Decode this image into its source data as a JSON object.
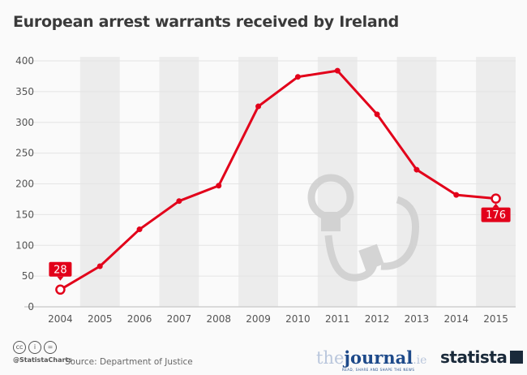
{
  "title": "European arrest warrants received by Ireland",
  "chart_data": {
    "type": "line",
    "title": "European arrest warrants received by Ireland",
    "xlabel": "",
    "ylabel": "",
    "categories": [
      "2004",
      "2005",
      "2006",
      "2007",
      "2008",
      "2009",
      "2010",
      "2011",
      "2012",
      "2013",
      "2014",
      "2015"
    ],
    "values": [
      28,
      66,
      126,
      172,
      197,
      326,
      374,
      384,
      313,
      223,
      182,
      176
    ],
    "ylim": [
      0,
      400
    ],
    "yticks": [
      0,
      50,
      100,
      150,
      200,
      250,
      300,
      350,
      400
    ],
    "grid": true,
    "data_labels": [
      {
        "category": "2004",
        "label": "28"
      },
      {
        "category": "2015",
        "label": "176"
      }
    ],
    "line_color": "#e2001a",
    "band_color": "#ececec"
  },
  "footer": {
    "handle": "@StatistaCharts",
    "source": "Source: Department of Justice",
    "partner_logo_text": "thejournal.ie",
    "partner_tagline": "READ, SHARE AND SHAPE THE NEWS",
    "brand": "statista",
    "license_icons": [
      "cc-icon",
      "attribution-icon",
      "no-derivatives-icon"
    ]
  }
}
